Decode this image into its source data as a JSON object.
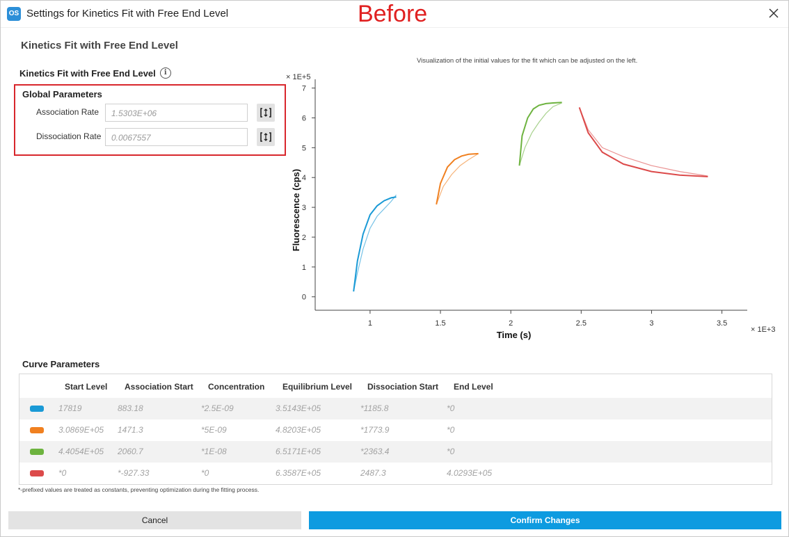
{
  "window": {
    "title": "Settings for Kinetics Fit with Free End Level",
    "logo_text": "OS",
    "annotation": "Before"
  },
  "section_title": "Kinetics Fit with Free End Level",
  "subsection_title": "Kinetics Fit with Free End Level",
  "info_icon_glyph": "i",
  "global_parameters": {
    "title": "Global Parameters",
    "association_rate": {
      "label": "Association Rate",
      "value": "1.5303E+06"
    },
    "dissociation_rate": {
      "label": "Dissociation Rate",
      "value": "0.0067557"
    }
  },
  "chart_caption": "Visualization of the initial values for the fit which can be adjusted on the left.",
  "chart_data": {
    "type": "line",
    "xlabel": "Time (s)",
    "ylabel": "Fluorescence (cps)",
    "x_multiplier": "× 1E+3",
    "y_multiplier": "× 1E+5",
    "x_ticks": [
      "1",
      "1.5",
      "2",
      "2.5",
      "3",
      "3.5"
    ],
    "y_ticks": [
      "0",
      "1",
      "2",
      "3",
      "4",
      "5",
      "6",
      "7"
    ],
    "xlim": [
      0.61,
      3.68
    ],
    "ylim": [
      -0.45,
      7.2
    ],
    "grid": false,
    "series": [
      {
        "color": "#1a9ad6",
        "data_x": [
          0.883,
          0.91,
          0.95,
          1.0,
          1.05,
          1.1,
          1.15,
          1.186
        ],
        "data_y": [
          0.18,
          0.8,
          1.6,
          2.3,
          2.7,
          2.95,
          3.2,
          3.42
        ],
        "fit_x": [
          0.883,
          0.91,
          0.95,
          1.0,
          1.05,
          1.1,
          1.15,
          1.186
        ],
        "fit_y": [
          0.18,
          1.2,
          2.1,
          2.75,
          3.05,
          3.22,
          3.32,
          3.35
        ]
      },
      {
        "color": "#f08020",
        "data_x": [
          1.471,
          1.52,
          1.58,
          1.64,
          1.7,
          1.77
        ],
        "data_y": [
          3.1,
          3.7,
          4.1,
          4.4,
          4.6,
          4.8
        ],
        "fit_x": [
          1.471,
          1.5,
          1.55,
          1.6,
          1.65,
          1.7,
          1.77
        ],
        "fit_y": [
          3.1,
          3.8,
          4.35,
          4.6,
          4.72,
          4.78,
          4.8
        ]
      },
      {
        "color": "#6db33f",
        "data_x": [
          2.061,
          2.1,
          2.15,
          2.2,
          2.25,
          2.3,
          2.363
        ],
        "data_y": [
          4.4,
          5.0,
          5.5,
          5.85,
          6.15,
          6.38,
          6.5
        ],
        "fit_x": [
          2.061,
          2.08,
          2.12,
          2.16,
          2.2,
          2.25,
          2.3,
          2.363
        ],
        "fit_y": [
          4.4,
          5.4,
          6.0,
          6.3,
          6.42,
          6.48,
          6.5,
          6.52
        ]
      },
      {
        "color": "#dc4a4a",
        "data_x": [
          2.487,
          2.55,
          2.65,
          2.8,
          3.0,
          3.2,
          3.4
        ],
        "data_y": [
          6.35,
          5.6,
          5.0,
          4.7,
          4.4,
          4.2,
          4.05
        ],
        "fit_x": [
          2.487,
          2.55,
          2.65,
          2.8,
          3.0,
          3.2,
          3.4
        ],
        "fit_y": [
          6.35,
          5.5,
          4.85,
          4.45,
          4.2,
          4.08,
          4.03
        ]
      }
    ]
  },
  "curve_parameters": {
    "title": "Curve Parameters",
    "headers": [
      "Start Level",
      "Association Start",
      "Concentration",
      "Equilibrium Level",
      "Dissociation Start",
      "End Level"
    ],
    "rows": [
      {
        "color": "#1a9ad6",
        "cells": [
          "17819",
          "883.18",
          "*2.5E-09",
          "3.5143E+05",
          "*1185.8",
          "*0"
        ]
      },
      {
        "color": "#f08020",
        "cells": [
          "3.0869E+05",
          "1471.3",
          "*5E-09",
          "4.8203E+05",
          "*1773.9",
          "*0"
        ]
      },
      {
        "color": "#6db33f",
        "cells": [
          "4.4054E+05",
          "2060.7",
          "*1E-08",
          "6.5171E+05",
          "*2363.4",
          "*0"
        ]
      },
      {
        "color": "#dc4a4a",
        "cells": [
          "*0",
          "*-927.33",
          "*0",
          "6.3587E+05",
          "2487.3",
          "4.0293E+05"
        ]
      }
    ]
  },
  "footnote": "*-prefixed values are treated as constants, preventing optimization during the fitting process.",
  "buttons": {
    "cancel": "Cancel",
    "confirm": "Confirm Changes"
  }
}
